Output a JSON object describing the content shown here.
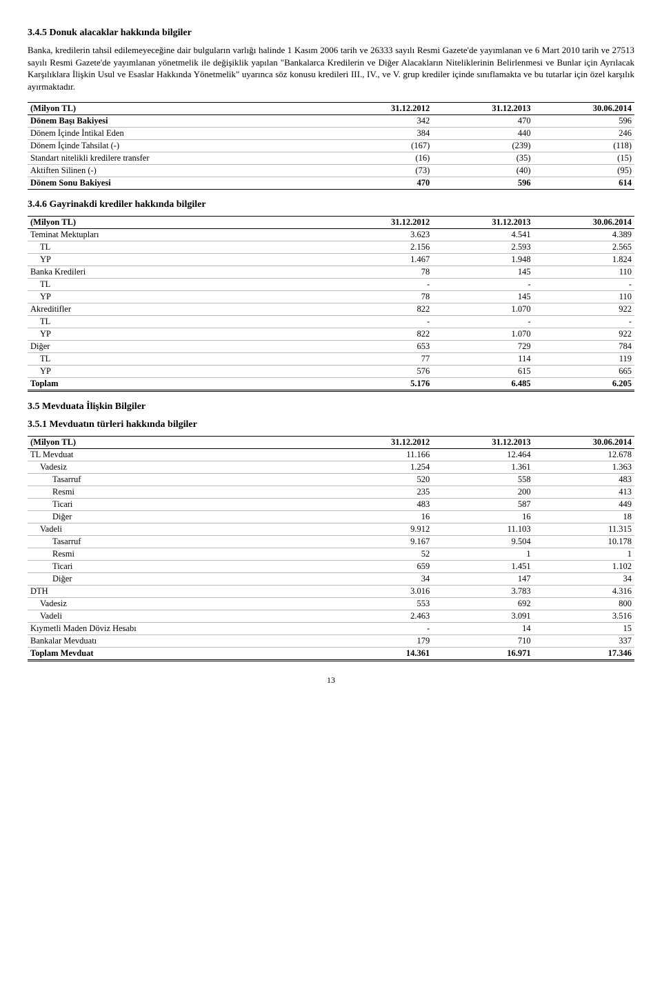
{
  "sec345": {
    "title": "3.4.5 Donuk alacaklar hakkında bilgiler",
    "para": "Banka, kredilerin tahsil edilemeyeceğine dair bulguların varlığı halinde 1 Kasım 2006 tarih ve 26333 sayılı Resmi Gazete'de yayımlanan ve 6 Mart 2010 tarih ve 27513 sayılı Resmi Gazete'de yayımlanan yönetmelik ile değişiklik yapılan \"Bankalarca Kredilerin ve Diğer Alacakların Niteliklerinin Belirlenmesi ve Bunlar için Ayrılacak Karşılıklara İlişkin Usul ve Esaslar Hakkında Yönetmelik\" uyarınca söz konusu kredileri III., IV., ve V. grup krediler içinde sınıflamakta ve bu tutarlar için özel karşılık ayırmaktadır."
  },
  "table1": {
    "hdr": [
      "(Milyon TL)",
      "31.12.2012",
      "31.12.2013",
      "30.06.2014"
    ],
    "rows": [
      {
        "bold": true,
        "l": "Dönem Başı Bakiyesi",
        "c": [
          "342",
          "470",
          "596"
        ]
      },
      {
        "bold": false,
        "l": "Dönem İçinde İntikal Eden",
        "c": [
          "384",
          "440",
          "246"
        ]
      },
      {
        "bold": false,
        "l": "Dönem İçinde Tahsilat (-)",
        "c": [
          "(167)",
          "(239)",
          "(118)"
        ]
      },
      {
        "bold": false,
        "l": "Standart nitelikli kredilere transfer",
        "c": [
          "(16)",
          "(35)",
          "(15)"
        ]
      },
      {
        "bold": false,
        "l": "Aktiften Silinen (-)",
        "c": [
          "(73)",
          "(40)",
          "(95)"
        ]
      }
    ],
    "total": {
      "l": "Dönem Sonu Bakiyesi",
      "c": [
        "470",
        "596",
        "614"
      ]
    }
  },
  "sec346": {
    "title": "3.4.6 Gayrinakdi krediler hakkında bilgiler"
  },
  "table2": {
    "hdr": [
      "(Milyon TL)",
      "31.12.2012",
      "31.12.2013",
      "30.06.2014"
    ],
    "rows": [
      {
        "l": "Teminat Mektupları",
        "i": 0,
        "c": [
          "3.623",
          "4.541",
          "4.389"
        ]
      },
      {
        "l": "TL",
        "i": 1,
        "c": [
          "2.156",
          "2.593",
          "2.565"
        ]
      },
      {
        "l": "YP",
        "i": 1,
        "c": [
          "1.467",
          "1.948",
          "1.824"
        ]
      },
      {
        "l": "Banka Kredileri",
        "i": 0,
        "c": [
          "78",
          "145",
          "110"
        ]
      },
      {
        "l": "TL",
        "i": 1,
        "c": [
          "-",
          "-",
          "-"
        ]
      },
      {
        "l": "YP",
        "i": 1,
        "c": [
          "78",
          "145",
          "110"
        ]
      },
      {
        "l": "Akreditifler",
        "i": 0,
        "c": [
          "822",
          "1.070",
          "922"
        ]
      },
      {
        "l": "TL",
        "i": 1,
        "c": [
          "-",
          "-",
          "-"
        ]
      },
      {
        "l": "YP",
        "i": 1,
        "c": [
          "822",
          "1.070",
          "922"
        ]
      },
      {
        "l": "Diğer",
        "i": 0,
        "c": [
          "653",
          "729",
          "784"
        ]
      },
      {
        "l": "TL",
        "i": 1,
        "c": [
          "77",
          "114",
          "119"
        ]
      },
      {
        "l": "YP",
        "i": 1,
        "c": [
          "576",
          "615",
          "665"
        ]
      }
    ],
    "total": {
      "l": "Toplam",
      "c": [
        "5.176",
        "6.485",
        "6.205"
      ]
    }
  },
  "sec35": {
    "title": "3.5   Mevduata İlişkin Bilgiler"
  },
  "sec351": {
    "title": "3.5.1 Mevduatın türleri hakkında bilgiler"
  },
  "table3": {
    "hdr": [
      "(Milyon TL)",
      "31.12.2012",
      "31.12.2013",
      "30.06.2014"
    ],
    "rows": [
      {
        "l": "TL Mevduat",
        "i": 0,
        "c": [
          "11.166",
          "12.464",
          "12.678"
        ]
      },
      {
        "l": "Vadesiz",
        "i": 1,
        "c": [
          "1.254",
          "1.361",
          "1.363"
        ]
      },
      {
        "l": "Tasarruf",
        "i": 2,
        "c": [
          "520",
          "558",
          "483"
        ]
      },
      {
        "l": "Resmi",
        "i": 2,
        "c": [
          "235",
          "200",
          "413"
        ]
      },
      {
        "l": "Ticari",
        "i": 2,
        "c": [
          "483",
          "587",
          "449"
        ]
      },
      {
        "l": "Diğer",
        "i": 2,
        "c": [
          "16",
          "16",
          "18"
        ]
      },
      {
        "l": "Vadeli",
        "i": 1,
        "c": [
          "9.912",
          "11.103",
          "11.315"
        ]
      },
      {
        "l": "Tasarruf",
        "i": 2,
        "c": [
          "9.167",
          "9.504",
          "10.178"
        ]
      },
      {
        "l": "Resmi",
        "i": 2,
        "c": [
          "52",
          "1",
          "1"
        ]
      },
      {
        "l": "Ticari",
        "i": 2,
        "c": [
          "659",
          "1.451",
          "1.102"
        ]
      },
      {
        "l": "Diğer",
        "i": 2,
        "c": [
          "34",
          "147",
          "34"
        ]
      },
      {
        "l": "DTH",
        "i": 0,
        "c": [
          "3.016",
          "3.783",
          "4.316"
        ]
      },
      {
        "l": "Vadesiz",
        "i": 1,
        "c": [
          "553",
          "692",
          "800"
        ]
      },
      {
        "l": "Vadeli",
        "i": 1,
        "c": [
          "2.463",
          "3.091",
          "3.516"
        ]
      },
      {
        "l": "Kıymetli Maden Döviz Hesabı",
        "i": 0,
        "c": [
          "-",
          "14",
          "15"
        ]
      },
      {
        "l": "Bankalar Mevduatı",
        "i": 0,
        "c": [
          "179",
          "710",
          "337"
        ]
      }
    ],
    "total": {
      "l": "Toplam Mevduat",
      "c": [
        "14.361",
        "16.971",
        "17.346"
      ]
    }
  },
  "pageNum": "13"
}
